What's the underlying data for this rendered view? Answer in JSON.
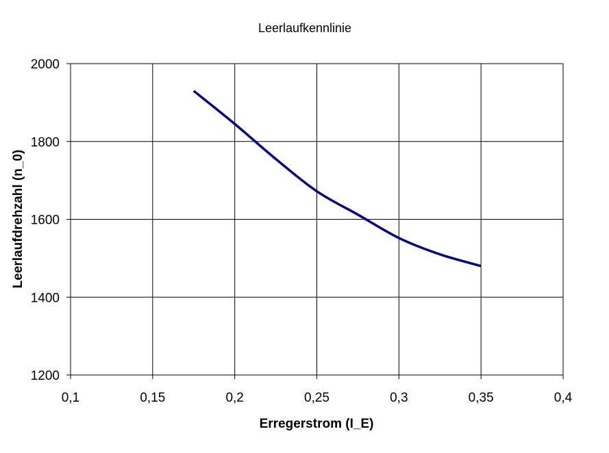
{
  "chart_data": {
    "type": "line",
    "title": "Leerlaufkennlinie",
    "xlabel": "Erregerstrom (I_E)",
    "ylabel": "Leerlaufdrehzahl (n_0)",
    "xlim": [
      0.1,
      0.4
    ],
    "ylim": [
      1200,
      2000
    ],
    "x_ticks": [
      0.1,
      0.15,
      0.2,
      0.25,
      0.3,
      0.35,
      0.4
    ],
    "x_tick_labels": [
      "0,1",
      "0,15",
      "0,2",
      "0,25",
      "0,3",
      "0,35",
      "0,4"
    ],
    "y_ticks": [
      1200,
      1400,
      1600,
      1800,
      2000
    ],
    "y_tick_labels": [
      "1200",
      "1400",
      "1600",
      "1800",
      "2000"
    ],
    "grid": true,
    "series": [
      {
        "color": "#000080",
        "x": [
          0.175,
          0.2,
          0.225,
          0.25,
          0.275,
          0.3,
          0.325,
          0.35
        ],
        "y": [
          1930,
          1845,
          1755,
          1672,
          1612,
          1552,
          1510,
          1480
        ]
      }
    ]
  }
}
